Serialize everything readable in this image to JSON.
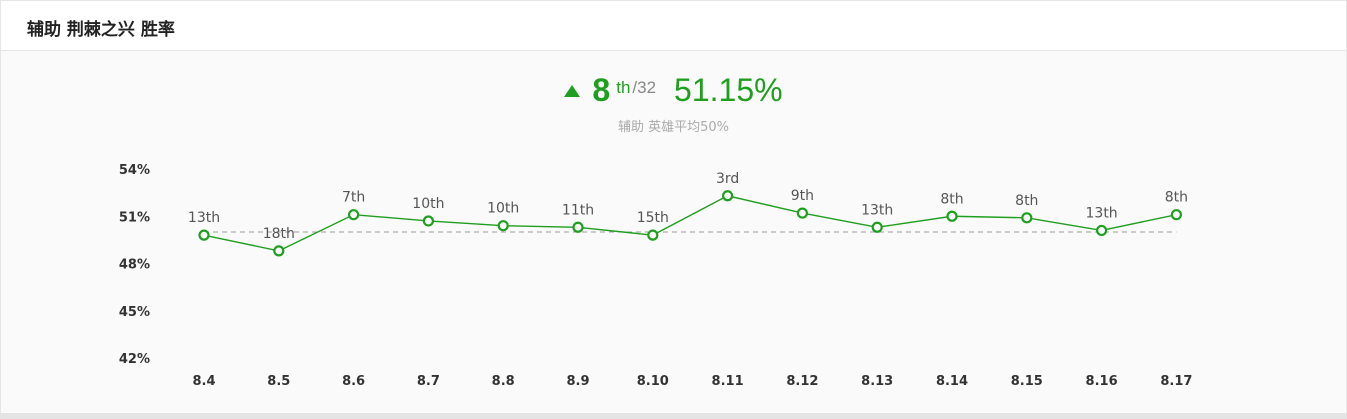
{
  "header": {
    "title": "辅助 荆棘之兴 胜率"
  },
  "summary": {
    "rank": "8",
    "rank_suffix": "th",
    "rank_total": "/32",
    "win_rate": "51.15%",
    "subtitle": "辅助 英雄平均50%",
    "trend_icon": "triangle-up-icon"
  },
  "colors": {
    "accent": "#1f9e1f",
    "muted": "#aaaaaa",
    "average_line": "#999999"
  },
  "chart_data": {
    "type": "line",
    "title": "",
    "xlabel": "",
    "ylabel": "",
    "categories": [
      "8.4",
      "8.5",
      "8.6",
      "8.7",
      "8.8",
      "8.9",
      "8.10",
      "8.11",
      "8.12",
      "8.13",
      "8.14",
      "8.15",
      "8.16",
      "8.17"
    ],
    "series": [
      {
        "values": [
          49.8,
          48.8,
          51.1,
          50.7,
          50.4,
          50.3,
          49.8,
          52.3,
          51.2,
          50.3,
          51.0,
          50.9,
          50.1,
          51.1
        ],
        "rank_labels": [
          "13th",
          "18th",
          "7th",
          "10th",
          "10th",
          "11th",
          "15th",
          "3rd",
          "9th",
          "13th",
          "8th",
          "8th",
          "13th",
          "8th"
        ]
      }
    ],
    "yticks": [
      "54%",
      "51%",
      "48%",
      "45%",
      "42%"
    ],
    "ylim": [
      42,
      54
    ],
    "average": 50,
    "grid": false,
    "legend": "none"
  }
}
